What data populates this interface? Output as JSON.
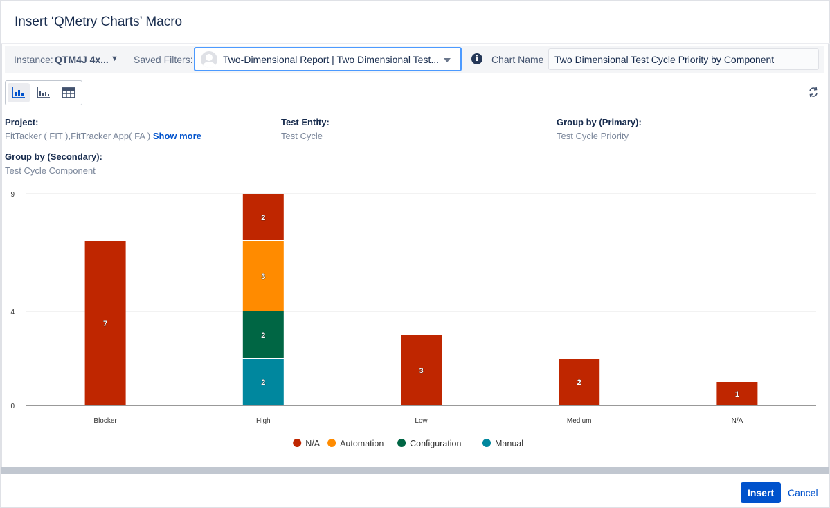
{
  "dialog": {
    "title": "Insert ‘QMetry Charts’ Macro"
  },
  "toolbar": {
    "instance_label": "Instance:",
    "instance_value": "QTM4J 4x...",
    "saved_filters_label": "Saved Filters:",
    "saved_filter_value": "Two-Dimensional Report | Two Dimensional Test...",
    "chart_name_label": "Chart Name",
    "chart_name_value": "Two Dimensional Test Cycle Priority by Component"
  },
  "view_toggle": {
    "options": [
      "stacked-bar-chart-icon",
      "bar-chart-icon",
      "table-icon"
    ],
    "selected": "stacked-bar-chart-icon"
  },
  "meta": {
    "project_label": "Project:",
    "project_value": "FitTacker ( FIT ),FitTracker App( FA )",
    "show_more": "Show more",
    "test_entity_label": "Test Entity:",
    "test_entity_value": "Test Cycle",
    "group_primary_label": "Group by (Primary):",
    "group_primary_value": "Test Cycle Priority",
    "group_secondary_label": "Group by (Secondary):",
    "group_secondary_value": "Test Cycle Component"
  },
  "chart_data": {
    "type": "bar",
    "stacked": true,
    "categories": [
      "Blocker",
      "High",
      "Low",
      "Medium",
      "N/A"
    ],
    "series": [
      {
        "name": "N/A",
        "color": "#bf2600",
        "values": [
          7,
          2,
          3,
          2,
          1
        ]
      },
      {
        "name": "Automation",
        "color": "#ff8b00",
        "values": [
          0,
          3,
          0,
          0,
          0
        ]
      },
      {
        "name": "Configuration",
        "color": "#006644",
        "values": [
          0,
          2,
          0,
          0,
          0
        ]
      },
      {
        "name": "Manual",
        "color": "#00879e",
        "values": [
          0,
          2,
          0,
          0,
          0
        ]
      }
    ],
    "y_ticks": [
      0,
      4,
      9
    ],
    "ylim": [
      0,
      9
    ],
    "grid": true,
    "legend_position": "bottom"
  },
  "footer": {
    "insert_label": "Insert",
    "cancel_label": "Cancel"
  },
  "colors": {
    "primary": "#0052cc",
    "focus": "#4c9aff"
  }
}
